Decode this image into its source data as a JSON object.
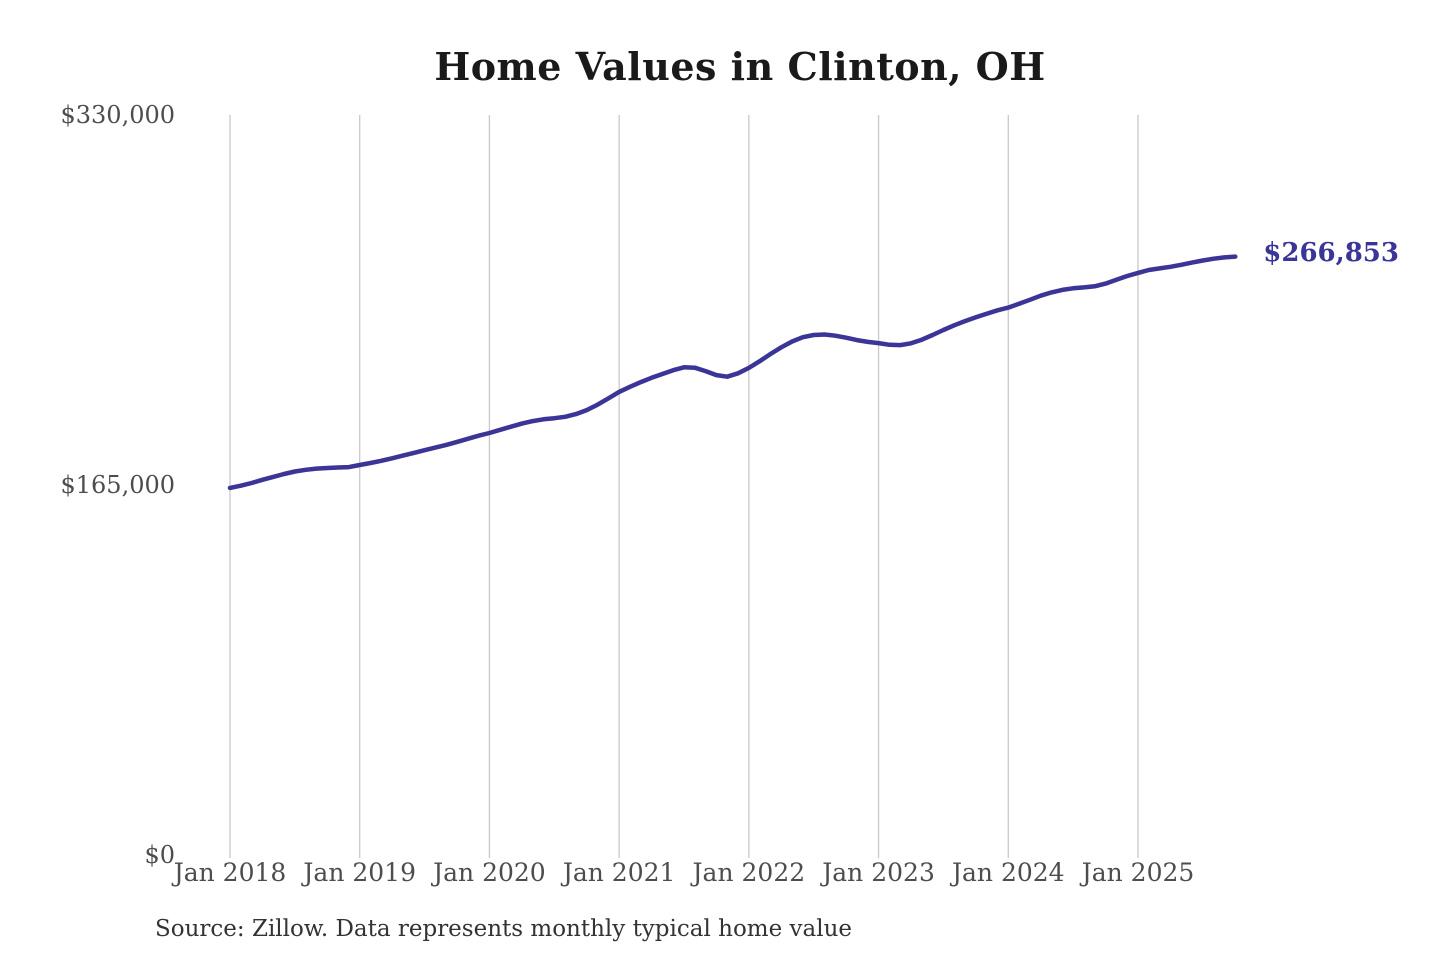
{
  "title": "Home Values in Clinton, OH",
  "end_label": "$266,853",
  "source_note": "Source: Zillow. Data represents monthly typical home value",
  "colors": {
    "line": "#3a3596",
    "grid": "#c9c9c9",
    "axis_text": "#4d4d4d",
    "title_text": "#1a1a1a",
    "end_label_text": "#3a3596",
    "background": "#ffffff"
  },
  "chart_data": {
    "type": "line",
    "title": "Home Values in Clinton, OH",
    "xlabel": "",
    "ylabel": "",
    "ylim": [
      0,
      330000
    ],
    "y_ticks": [
      0,
      165000,
      330000
    ],
    "y_tick_labels": [
      "$0",
      "$165,000",
      "$330,000"
    ],
    "x_tick_labels": [
      "Jan 2018",
      "Jan 2019",
      "Jan 2020",
      "Jan 2021",
      "Jan 2022",
      "Jan 2023",
      "Jan 2024",
      "Jan 2025"
    ],
    "grid": "vertical-only",
    "legend_position": "none",
    "start_month": "Jan 2018",
    "end_month": "Oct 2025",
    "final_value": 266853,
    "series": [
      {
        "name": "Typical home value (USD)",
        "monthly_values": [
          163700,
          164700,
          165900,
          167300,
          168600,
          169900,
          171000,
          171800,
          172300,
          172600,
          172800,
          173000,
          173900,
          174800,
          175800,
          176900,
          178100,
          179300,
          180500,
          181700,
          182900,
          184200,
          185600,
          187000,
          188200,
          189600,
          191000,
          192400,
          193500,
          194300,
          194800,
          195400,
          196600,
          198400,
          200800,
          203600,
          206500,
          208800,
          210900,
          212800,
          214500,
          216200,
          217500,
          217300,
          215800,
          214000,
          213300,
          214800,
          217200,
          220200,
          223400,
          226400,
          229000,
          230900,
          231900,
          232100,
          231600,
          230700,
          229600,
          228800,
          228300,
          227500,
          227400,
          228200,
          229800,
          231900,
          234100,
          236200,
          238100,
          239800,
          241400,
          242900,
          244100,
          245800,
          247600,
          249400,
          250900,
          252000,
          252700,
          253100,
          253600,
          254800,
          256500,
          258200,
          259600,
          260900,
          261600,
          262300,
          263200,
          264200,
          265100,
          265900,
          266500,
          266853
        ]
      }
    ]
  }
}
